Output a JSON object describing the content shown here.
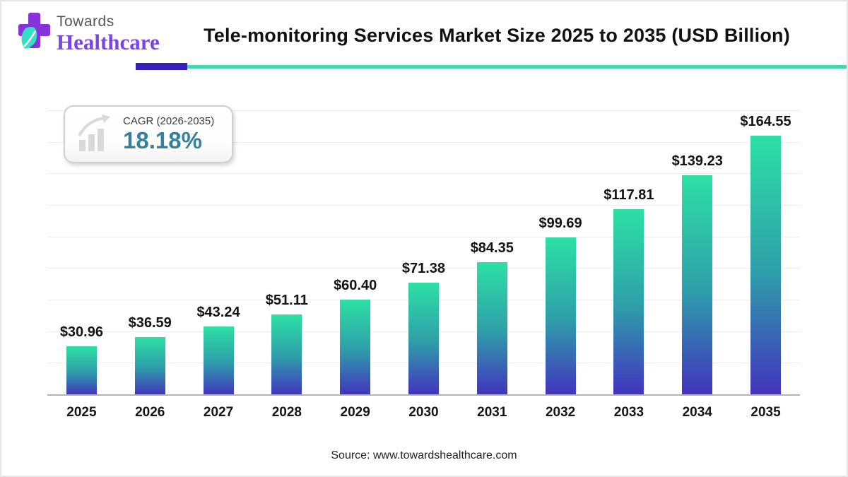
{
  "logo": {
    "line1": "Towards",
    "line2": "Healthcare"
  },
  "header": {
    "title": "Tele-monitoring Services Market Size 2025 to 2035 (USD Billion)"
  },
  "cagr": {
    "label": "CAGR (2026-2035)",
    "value": "18.18%"
  },
  "source": "Source: www.towardshealthcare.com",
  "colors": {
    "bar_top": "#2de0a4",
    "bar_mid": "#2e9fa9",
    "bar_bottom": "#4233be",
    "underline_accent": "#3a1eb8",
    "underline_line": "#3fd8ab",
    "cagr_value": "#35809b",
    "logo_cross_purple": "#8633dc",
    "logo_leaf_teal": "#35dfc3",
    "logo_text_purple": "#7a45e6",
    "grid_line": "#ededed",
    "axis_line": "#b3b3b3"
  },
  "chart_data": {
    "type": "bar",
    "title": "Tele-monitoring Services Market Size 2025 to 2035 (USD Billion)",
    "unit": "USD Billion",
    "categories": [
      "2025",
      "2026",
      "2027",
      "2028",
      "2029",
      "2030",
      "2031",
      "2032",
      "2033",
      "2034",
      "2035"
    ],
    "values": [
      30.96,
      36.59,
      43.24,
      51.11,
      60.4,
      71.38,
      84.35,
      99.69,
      117.81,
      139.23,
      164.55
    ],
    "value_labels": [
      "$30.96",
      "$36.59",
      "$43.24",
      "$51.11",
      "$60.40",
      "$71.38",
      "$84.35",
      "$99.69",
      "$117.81",
      "$139.23",
      "$164.55"
    ],
    "ylim": [
      0,
      180
    ],
    "grid": "horizontal every 20, no y tick labels",
    "legend": "none",
    "bar_gradient": [
      "#2de0a4",
      "#2e9fa9",
      "#4233be"
    ]
  }
}
